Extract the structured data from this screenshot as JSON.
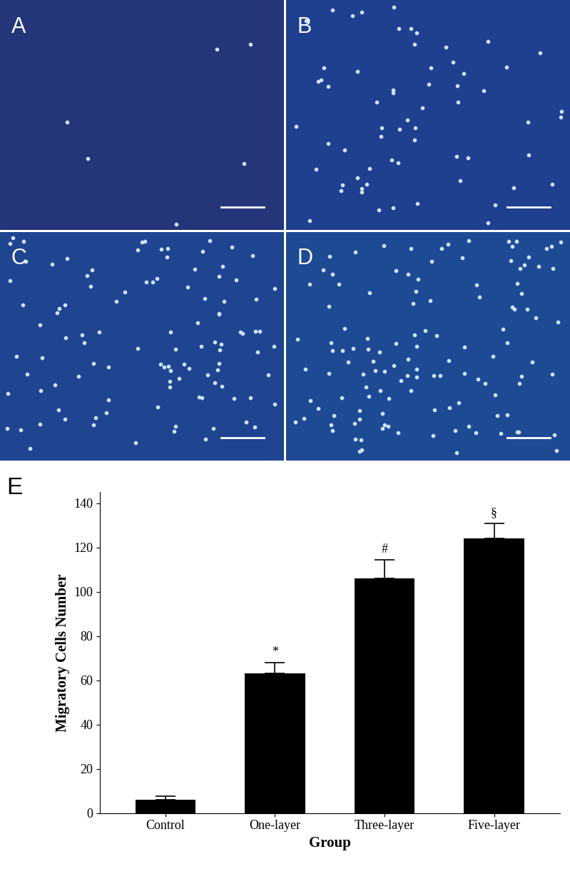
{
  "panels": [
    {
      "label": "A"
    },
    {
      "label": "B"
    },
    {
      "label": "C"
    },
    {
      "label": "D"
    }
  ],
  "chart_data": {
    "type": "bar",
    "label": "E",
    "x_label": "Group",
    "y_label": "Migratory Cells Number",
    "categories": [
      "Control",
      "One-layer",
      "Three-layer",
      "Five-layer"
    ],
    "values": [
      6,
      63,
      106,
      124
    ],
    "errors": [
      1.5,
      5,
      8.5,
      7
    ],
    "significance": [
      null,
      "*",
      "#",
      "§"
    ],
    "color": "#000000",
    "ylim": [
      0,
      145
    ],
    "yticks": [
      0,
      20,
      40,
      60,
      80,
      100,
      120,
      140
    ],
    "grid": false
  }
}
